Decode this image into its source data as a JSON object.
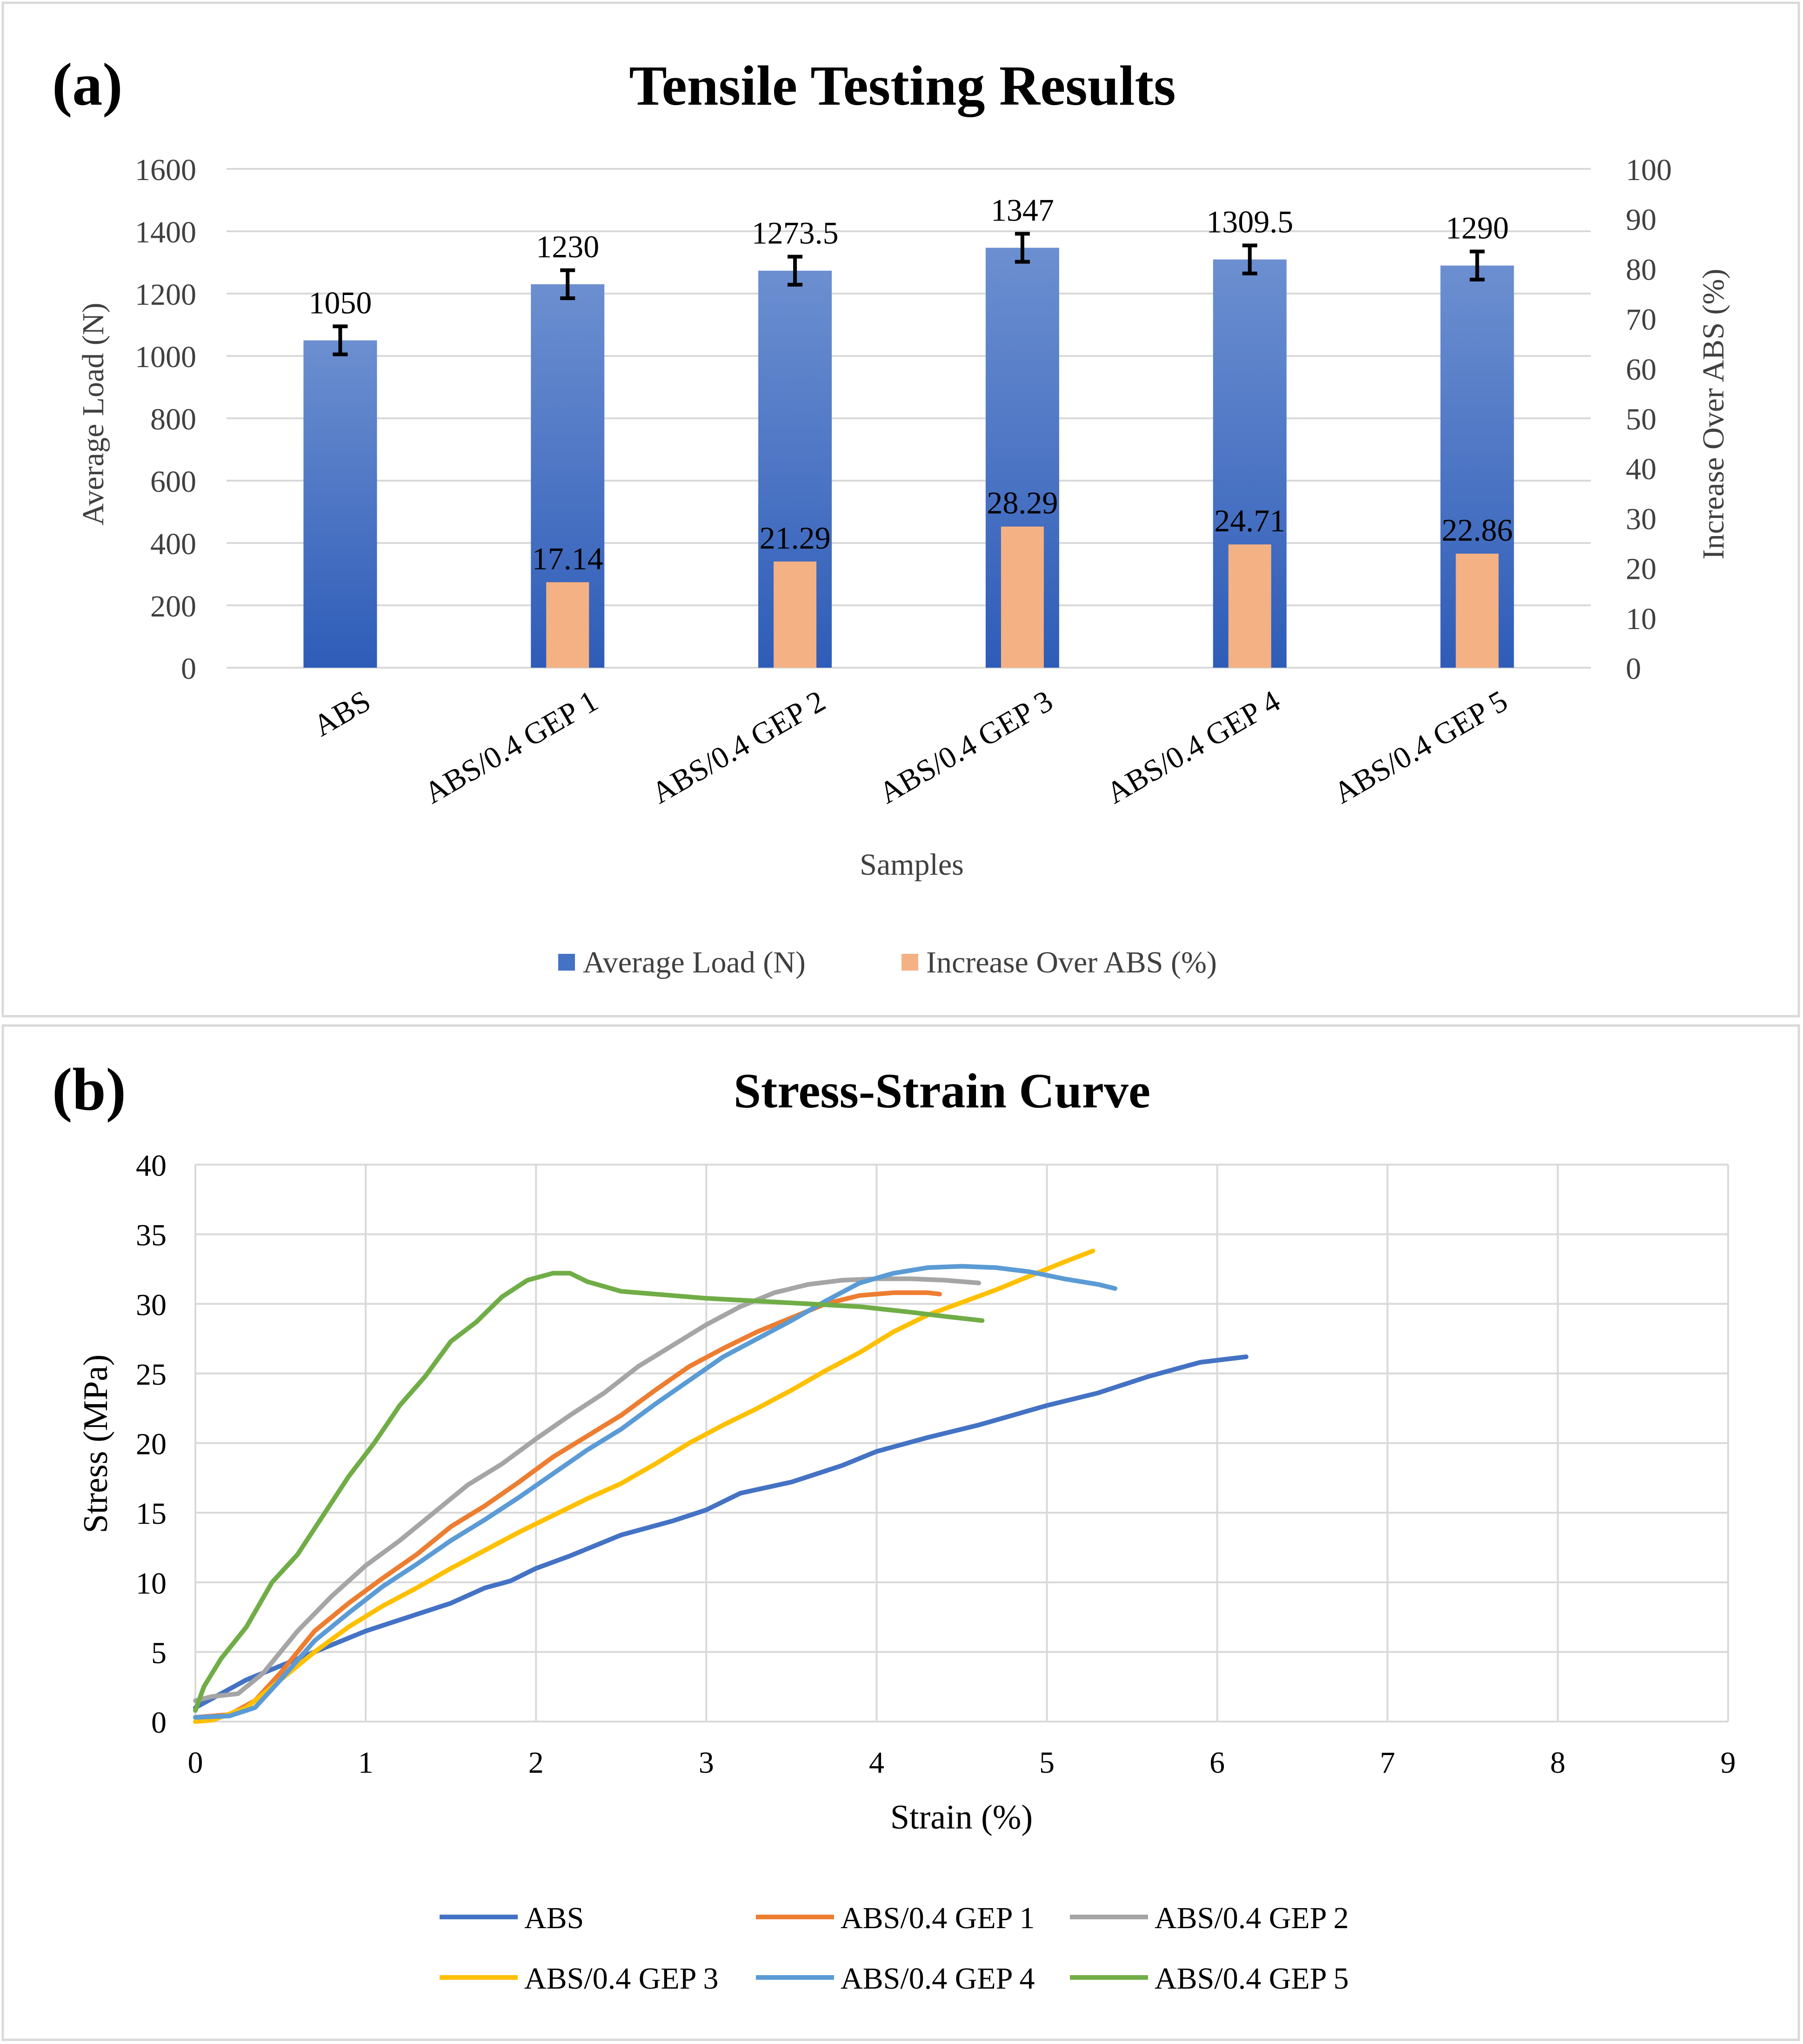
{
  "panels": [
    {
      "label": "(a)"
    },
    {
      "label": "(b)"
    }
  ],
  "colors": {
    "load_bar": "#4472C4",
    "increase_bar": "#F4B183",
    "grid": "#D9D9D9",
    "abs": "#4472C4",
    "gep1": "#ED7D31",
    "gep2": "#A5A5A5",
    "gep3": "#FFC000",
    "gep4": "#5B9BD5",
    "gep5": "#70AD47"
  },
  "chart_data": [
    {
      "type": "bar",
      "title": "Tensile Testing Results",
      "xlabel": "Samples",
      "ylabel": "Average Load (N)",
      "y2label": "Increase Over ABS (%)",
      "ylim": [
        0,
        1600
      ],
      "yticks": [
        0,
        200,
        400,
        600,
        800,
        1000,
        1200,
        1400,
        1600
      ],
      "y2lim": [
        0,
        100
      ],
      "y2ticks": [
        0,
        10,
        20,
        30,
        40,
        50,
        60,
        70,
        80,
        90,
        100
      ],
      "categories": [
        "ABS",
        "ABS/0.4 GEP 1",
        "ABS/0.4 GEP 2",
        "ABS/0.4 GEP 3",
        "ABS/0.4 GEP 4",
        "ABS/0.4 GEP 5"
      ],
      "series": [
        {
          "name": "Average Load (N)",
          "axis": "left",
          "values": [
            1050,
            1230,
            1273.5,
            1347,
            1309.5,
            1290
          ],
          "labels": [
            "1050",
            "1230",
            "1273.5",
            "1347",
            "1309.5",
            "1290"
          ],
          "error": [
            45,
            45,
            45,
            45,
            45,
            45
          ]
        },
        {
          "name": "Increase Over ABS (%)",
          "axis": "right",
          "values": [
            0,
            17.14,
            21.29,
            28.29,
            24.71,
            22.86
          ],
          "labels": [
            "",
            "17.14",
            "21.29",
            "28.29",
            "24.71",
            "22.86"
          ]
        }
      ],
      "legend": "bottom",
      "grid": true
    },
    {
      "type": "line",
      "title": "Stress-Strain Curve",
      "xlabel": "Strain (%)",
      "ylabel": "Stress (MPa)",
      "xlim": [
        0,
        9
      ],
      "xticks": [
        0,
        1,
        2,
        3,
        4,
        5,
        6,
        7,
        8,
        9
      ],
      "ylim": [
        0,
        40
      ],
      "yticks": [
        0,
        5,
        10,
        15,
        20,
        25,
        30,
        35,
        40
      ],
      "legend": "bottom",
      "grid": true,
      "series": [
        {
          "name": "ABS",
          "color_key": "abs",
          "x": [
            0,
            0.3,
            0.6,
            0.8,
            1.0,
            1.2,
            1.5,
            1.7,
            1.85,
            2.0,
            2.2,
            2.5,
            2.8,
            3.0,
            3.2,
            3.5,
            3.8,
            4.0,
            4.3,
            4.6,
            5.0,
            5.3,
            5.6,
            5.9,
            6.17
          ],
          "y": [
            1,
            3,
            4.5,
            5.5,
            6.5,
            7.3,
            8.5,
            9.6,
            10.1,
            11,
            11.9,
            13.4,
            14.4,
            15.2,
            16.4,
            17.2,
            18.4,
            19.4,
            20.4,
            21.3,
            22.7,
            23.6,
            24.8,
            25.8,
            26.2
          ]
        },
        {
          "name": "ABS/0.4 GEP 1",
          "color_key": "gep1",
          "x": [
            0,
            0.2,
            0.35,
            0.5,
            0.7,
            0.9,
            1.1,
            1.3,
            1.5,
            1.7,
            1.9,
            2.1,
            2.3,
            2.5,
            2.7,
            2.9,
            3.1,
            3.3,
            3.5,
            3.7,
            3.9,
            4.1,
            4.3,
            4.37
          ],
          "y": [
            0.3,
            0.5,
            1.5,
            3.5,
            6.5,
            8.5,
            10.3,
            12,
            14,
            15.5,
            17.2,
            19,
            20.5,
            22,
            23.8,
            25.5,
            26.8,
            28,
            29,
            30,
            30.6,
            30.8,
            30.8,
            30.7
          ]
        },
        {
          "name": "ABS/0.4 GEP 2",
          "color_key": "gep2",
          "x": [
            0,
            0.1,
            0.25,
            0.4,
            0.6,
            0.8,
            1.0,
            1.2,
            1.4,
            1.6,
            1.8,
            2.0,
            2.2,
            2.4,
            2.6,
            2.8,
            3.0,
            3.2,
            3.4,
            3.6,
            3.8,
            4.0,
            4.2,
            4.4,
            4.6
          ],
          "y": [
            1.5,
            1.8,
            2,
            3.5,
            6.5,
            9,
            11.2,
            13,
            15,
            17,
            18.5,
            20.3,
            22,
            23.6,
            25.5,
            27,
            28.5,
            29.8,
            30.8,
            31.4,
            31.7,
            31.8,
            31.8,
            31.7,
            31.5
          ]
        },
        {
          "name": "ABS/0.4 GEP 3",
          "color_key": "gep3",
          "x": [
            0,
            0.1,
            0.3,
            0.5,
            0.7,
            0.9,
            1.1,
            1.3,
            1.5,
            1.7,
            1.9,
            2.1,
            2.3,
            2.5,
            2.7,
            2.9,
            3.1,
            3.3,
            3.5,
            3.7,
            3.9,
            4.1,
            4.3,
            4.5,
            4.7,
            4.9,
            5.1,
            5.27
          ],
          "y": [
            0,
            0.1,
            1,
            3,
            5,
            6.8,
            8.3,
            9.6,
            11,
            12.3,
            13.6,
            14.8,
            16,
            17.1,
            18.5,
            20,
            21.3,
            22.5,
            23.8,
            25.2,
            26.5,
            28,
            29.2,
            30.1,
            31,
            32,
            33,
            33.8
          ]
        },
        {
          "name": "ABS/0.4 GEP 4",
          "color_key": "gep4",
          "x": [
            0,
            0.2,
            0.35,
            0.5,
            0.7,
            0.9,
            1.1,
            1.3,
            1.5,
            1.7,
            1.9,
            2.1,
            2.3,
            2.5,
            2.7,
            2.9,
            3.1,
            3.3,
            3.5,
            3.7,
            3.9,
            4.1,
            4.3,
            4.5,
            4.7,
            4.9,
            5.1,
            5.3,
            5.4
          ],
          "y": [
            0.3,
            0.4,
            1,
            3,
            5.8,
            7.8,
            9.7,
            11.3,
            13,
            14.5,
            16.1,
            17.8,
            19.5,
            21,
            22.8,
            24.5,
            26.2,
            27.5,
            28.8,
            30.2,
            31.5,
            32.2,
            32.6,
            32.7,
            32.6,
            32.3,
            31.8,
            31.4,
            31.1
          ]
        },
        {
          "name": "ABS/0.4 GEP 5",
          "color_key": "gep5",
          "x": [
            0,
            0.05,
            0.15,
            0.3,
            0.45,
            0.6,
            0.75,
            0.9,
            1.05,
            1.2,
            1.35,
            1.5,
            1.65,
            1.8,
            1.95,
            2.1,
            2.2,
            2.3,
            2.5,
            2.8,
            3.0,
            3.3,
            3.6,
            3.9,
            4.2,
            4.4,
            4.62
          ],
          "y": [
            0.8,
            2.5,
            4.5,
            6.8,
            10,
            12,
            14.8,
            17.6,
            20,
            22.7,
            24.8,
            27.3,
            28.7,
            30.5,
            31.7,
            32.2,
            32.2,
            31.6,
            30.9,
            30.6,
            30.4,
            30.2,
            30,
            29.8,
            29.4,
            29.1,
            28.8
          ]
        }
      ]
    }
  ]
}
